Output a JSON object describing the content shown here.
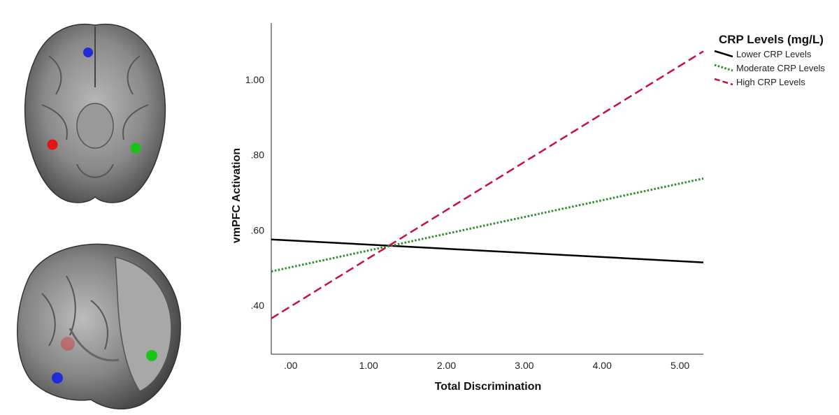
{
  "chart_data": {
    "type": "line",
    "xlabel": "Total Discrimination",
    "ylabel": "vmPFC Activation",
    "xlim": [
      -0.25,
      5.3
    ],
    "ylim": [
      0.27,
      1.15
    ],
    "x_ticks": [
      0,
      1,
      2,
      3,
      4,
      5
    ],
    "x_tick_labels": [
      ".00",
      "1.00",
      "2.00",
      "3.00",
      "4.00",
      "5.00"
    ],
    "y_ticks": [
      0.4,
      0.6,
      0.8,
      1.0
    ],
    "y_tick_labels": [
      ".40",
      ".60",
      ".80",
      "1.00"
    ],
    "legend_title": "CRP Levels (mg/L)",
    "series": [
      {
        "name": "Lower CRP Levels",
        "color": "#000000",
        "style": "solid",
        "x": [
          -0.25,
          5.3
        ],
        "y": [
          0.575,
          0.514
        ]
      },
      {
        "name": "Moderate CRP Levels",
        "color": "#2e8b2e",
        "style": "dotted",
        "x": [
          -0.25,
          5.3
        ],
        "y": [
          0.49,
          0.737
        ]
      },
      {
        "name": "High CRP Levels",
        "color": "#c8103e",
        "style": "dashed",
        "x": [
          -0.25,
          5.3
        ],
        "y": [
          0.365,
          1.075
        ]
      }
    ]
  },
  "brain_markers": [
    {
      "name": "blue",
      "color": "#1f2bd6"
    },
    {
      "name": "red",
      "color": "#e01515"
    },
    {
      "name": "green",
      "color": "#19c419"
    }
  ]
}
